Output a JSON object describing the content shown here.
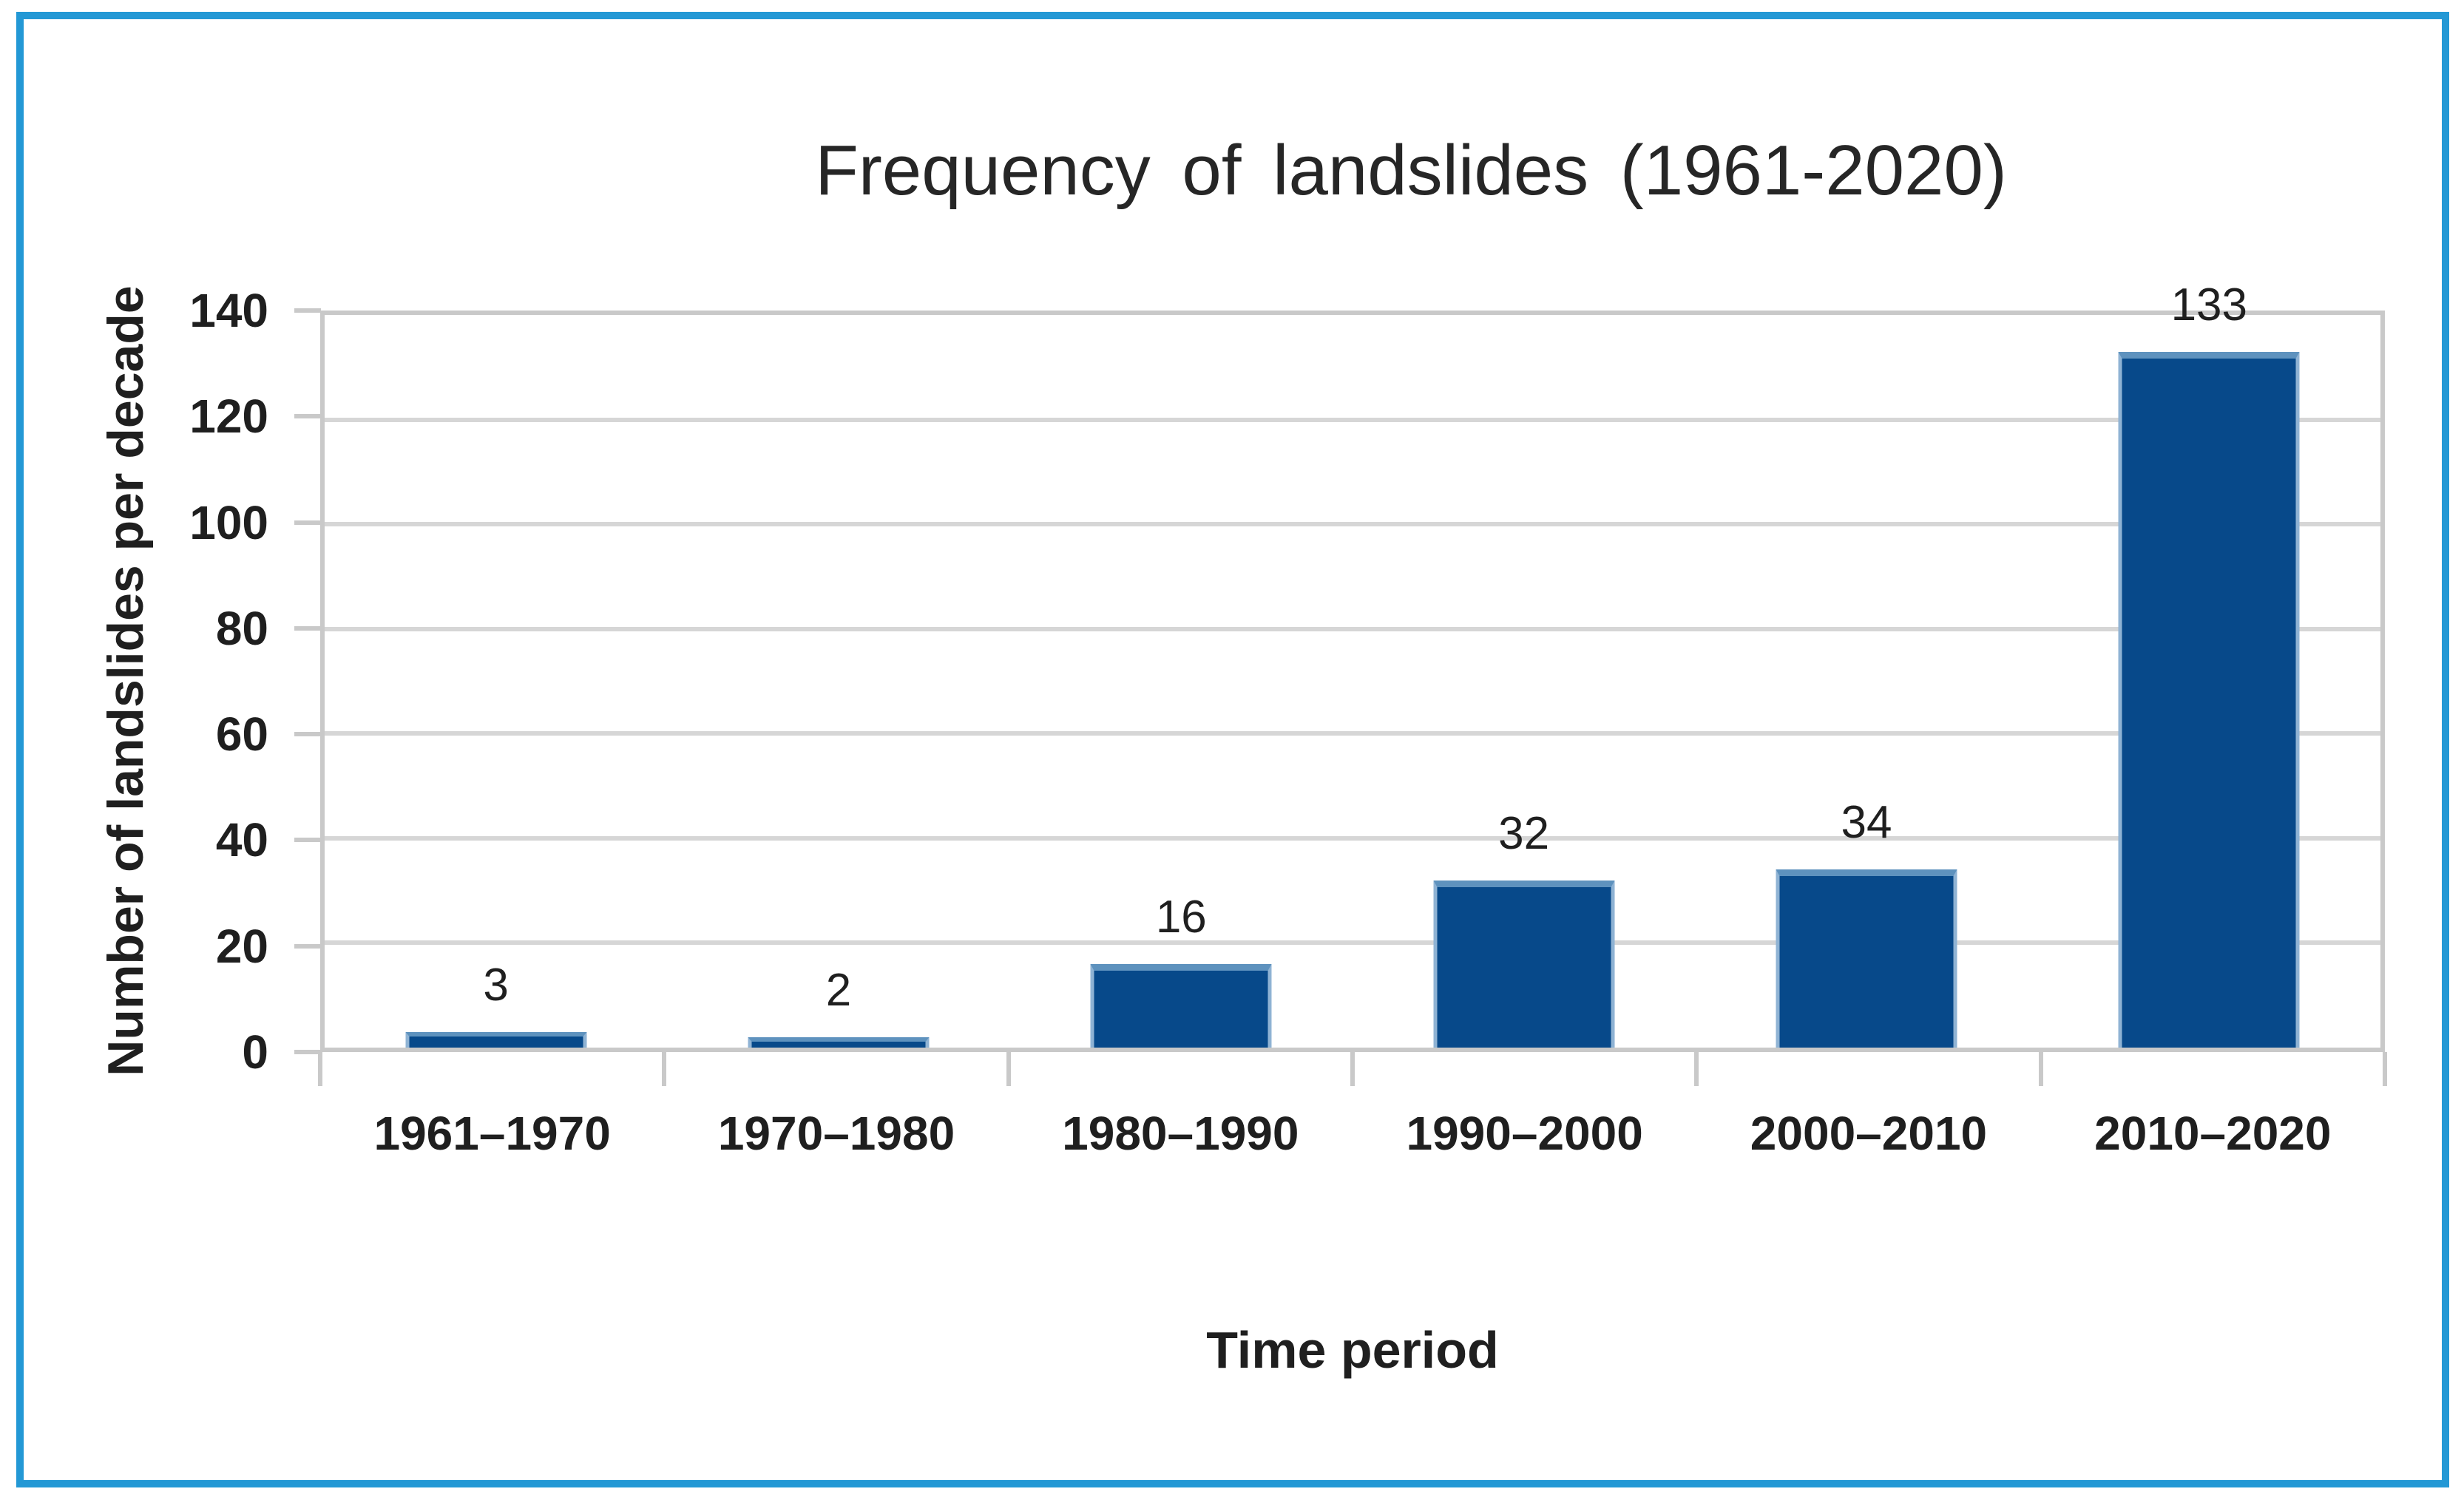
{
  "figure": {
    "background_color": "#FFFFFF",
    "border_color": "#2398D5"
  },
  "chart_data": {
    "type": "bar",
    "title": "Frequency of landslides (1961-2020)",
    "xlabel": "Time period",
    "ylabel": "Number of landslides per decade",
    "categories": [
      "1961–1970",
      "1970–1980",
      "1980–1990",
      "1990–2000",
      "2000–2010",
      "2010–2020"
    ],
    "values": [
      3,
      2,
      16,
      32,
      34,
      133
    ],
    "data_labels": [
      "3",
      "2",
      "16",
      "32",
      "34",
      "133"
    ],
    "y_ticks": [
      0,
      20,
      40,
      60,
      80,
      100,
      120,
      140
    ],
    "ylim": [
      0,
      140
    ],
    "grid": "horizontal",
    "legend": "none",
    "bar_color": "#07498A",
    "bar_edge_color": "#5E92BE",
    "gridline_color": "#D6D6D6",
    "axis_line_color": "#C9C9C9",
    "text_color": "#1F1F1F"
  }
}
